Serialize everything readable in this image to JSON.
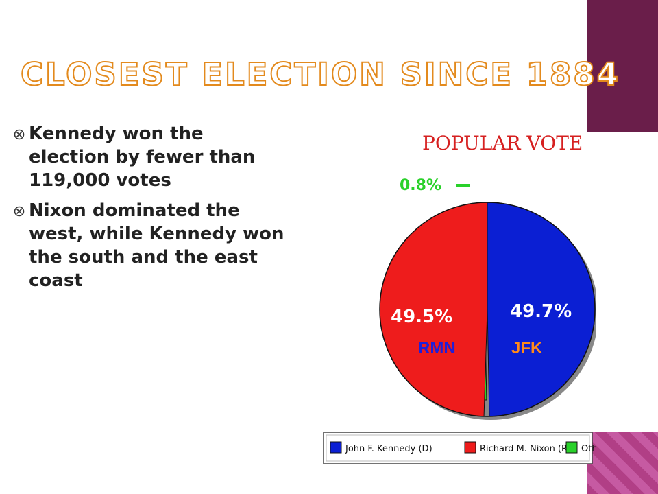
{
  "slide": {
    "title": "Closest Election since 1884",
    "bullets": [
      "Kennedy won the election by fewer than 119,000 votes",
      "Nixon dominated the west, while Kennedy won the south and the east coast"
    ]
  },
  "colors": {
    "kennedy": "#0b1fd3",
    "nixon": "#ee1c1c",
    "other": "#29d12a",
    "title_outline": "#e38a1d",
    "accent_bar": "#6a1e4a"
  },
  "chart_data": {
    "type": "pie",
    "title": "POPULAR VOTE",
    "slices": [
      {
        "label": "John F. Kennedy (D)",
        "short": "JFK",
        "value": 49.7,
        "display": "49.7%",
        "color": "#0b1fd3"
      },
      {
        "label": "Other",
        "short": "",
        "value": 0.8,
        "display": "0.8%",
        "color": "#29d12a"
      },
      {
        "label": "Richard M. Nixon (R)",
        "short": "RMN",
        "value": 49.5,
        "display": "49.5%",
        "color": "#ee1c1c"
      }
    ],
    "legend_placement": "bottom"
  }
}
